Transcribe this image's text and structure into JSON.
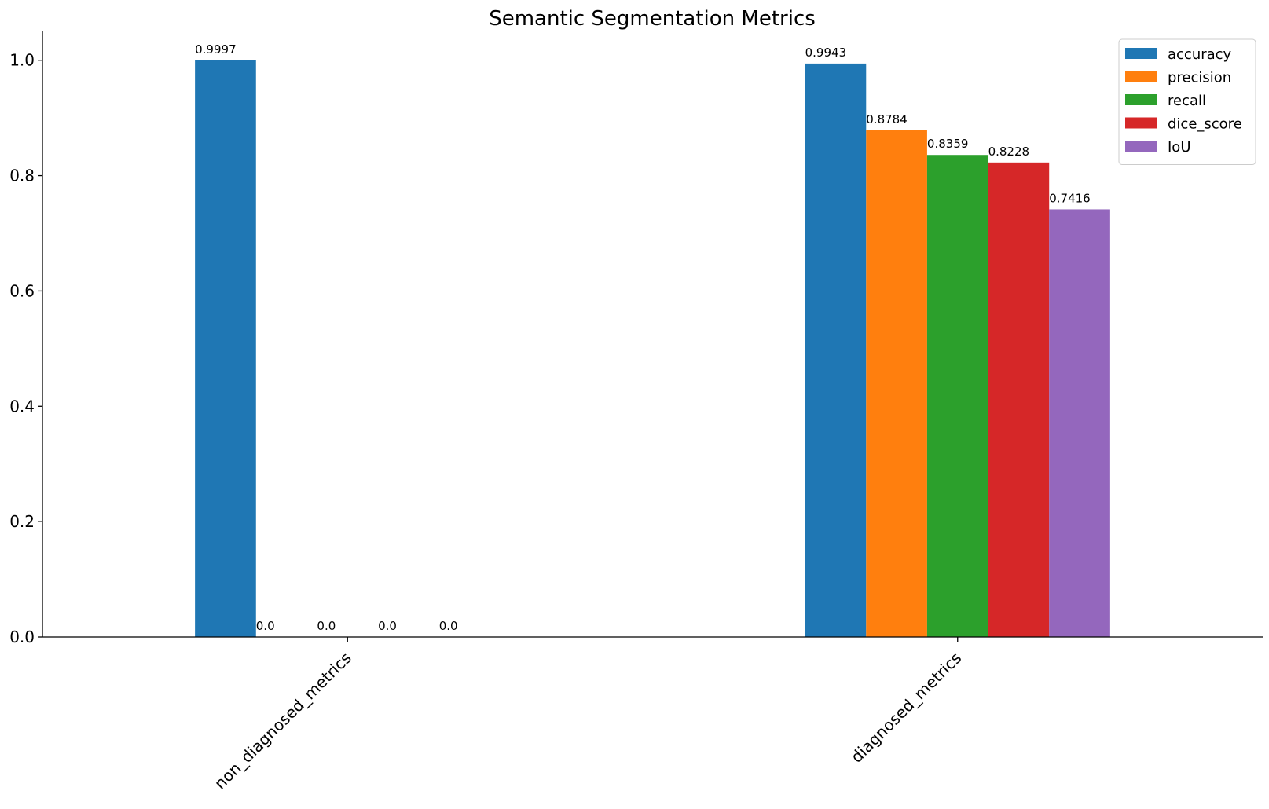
{
  "chart_data": {
    "type": "bar",
    "title": "Semantic Segmentation Metrics",
    "categories": [
      "non_diagnosed_metrics",
      "diagnosed_metrics"
    ],
    "series": [
      {
        "name": "accuracy",
        "color": "#1f77b4",
        "values": [
          0.9997,
          0.9943
        ],
        "labels": [
          "0.9997",
          "0.9943"
        ]
      },
      {
        "name": "precision",
        "color": "#ff7f0e",
        "values": [
          0.0,
          0.8784
        ],
        "labels": [
          "0.0",
          "0.8784"
        ]
      },
      {
        "name": "recall",
        "color": "#2ca02c",
        "values": [
          0.0,
          0.8359
        ],
        "labels": [
          "0.0",
          "0.8359"
        ]
      },
      {
        "name": "dice_score",
        "color": "#d62728",
        "values": [
          0.0,
          0.8228
        ],
        "labels": [
          "0.0",
          "0.8228"
        ]
      },
      {
        "name": "IoU",
        "color": "#9467bd",
        "values": [
          0.0,
          0.7416
        ],
        "labels": [
          "0.0",
          "0.7416"
        ]
      }
    ],
    "ylim": [
      0,
      1.05
    ],
    "yticks": [
      0.0,
      0.2,
      0.4,
      0.6,
      0.8,
      1.0
    ],
    "ytick_labels": [
      "0.0",
      "0.2",
      "0.4",
      "0.6",
      "0.8",
      "1.0"
    ],
    "xlabel": "",
    "ylabel": "",
    "grid": false,
    "legend_position": "top-right",
    "xtick_rotation": "45"
  }
}
